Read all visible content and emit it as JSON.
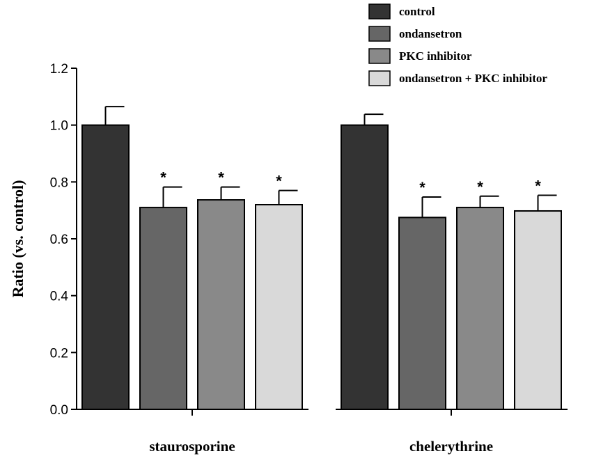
{
  "chart_data": {
    "type": "bar",
    "title": "",
    "xlabel": "",
    "ylabel": "Ratio (vs. control)",
    "ylim": [
      0,
      1.2
    ],
    "yticks": [
      "0.0",
      "0.2",
      "0.4",
      "0.6",
      "0.8",
      "1.0",
      "1.2"
    ],
    "categories": [
      "staurosporine",
      "chelerythrine"
    ],
    "legend_position": "top-right",
    "series": [
      {
        "name": "control",
        "color": "#333333",
        "values": [
          1.0,
          1.0
        ],
        "errors": [
          0.065,
          0.038
        ],
        "significance": [
          "",
          ""
        ]
      },
      {
        "name": "ondansetron",
        "color": "#666666",
        "values": [
          0.71,
          0.675
        ],
        "errors": [
          0.072,
          0.072
        ],
        "significance": [
          "*",
          "*"
        ]
      },
      {
        "name": "PKC inhibitor",
        "color": "#898989",
        "values": [
          0.737,
          0.71
        ],
        "errors": [
          0.045,
          0.04
        ],
        "significance": [
          "*",
          "*"
        ]
      },
      {
        "name": "ondansetron + PKC inhibitor",
        "color": "#d9d9d9",
        "values": [
          0.72,
          0.698
        ],
        "errors": [
          0.05,
          0.055
        ],
        "significance": [
          "*",
          "*"
        ]
      }
    ]
  }
}
